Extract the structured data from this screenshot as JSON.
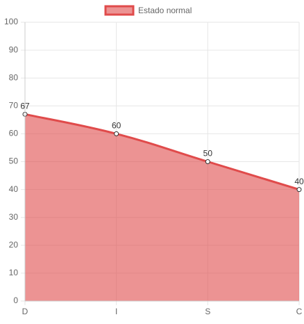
{
  "chart_data": {
    "type": "area",
    "categories": [
      "D",
      "I",
      "S",
      "C"
    ],
    "series": [
      {
        "name": "Estado normal",
        "color": "#e04b4b",
        "values": [
          67,
          60,
          50,
          40
        ]
      }
    ],
    "ylim": [
      0,
      100
    ],
    "yticks": [
      0,
      10,
      20,
      30,
      40,
      50,
      60,
      70,
      80,
      90,
      100
    ],
    "grid": true,
    "legend": "top"
  }
}
